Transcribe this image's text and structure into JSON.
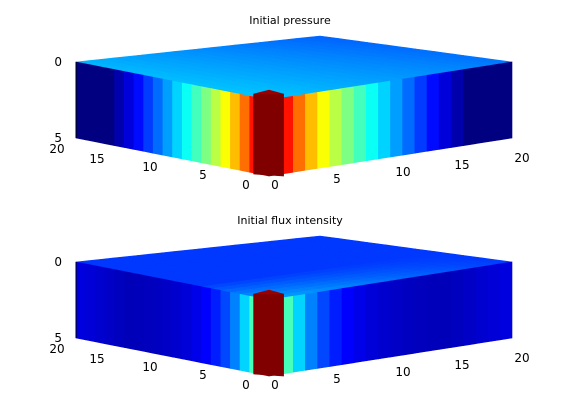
{
  "chart_data": [
    {
      "type": "heatmap",
      "title": "Initial pressure",
      "colormap": "jet",
      "x_ticks": [
        "0",
        "5",
        "10",
        "15",
        "20"
      ],
      "y_ticks": [
        "20",
        "15",
        "10",
        "5",
        "0"
      ],
      "z_ticks": [
        "0",
        "5"
      ],
      "x_range": [
        0,
        20
      ],
      "y_range": [
        0,
        20
      ],
      "z_range": [
        0,
        5
      ],
      "peak_cell": {
        "x": 0,
        "y": 0
      },
      "decay": "radial from corner (0,0), pressure falls off with distance"
    },
    {
      "type": "heatmap",
      "title": "Initial flux intensity",
      "colormap": "jet",
      "x_ticks": [
        "0",
        "5",
        "10",
        "15",
        "20"
      ],
      "y_ticks": [
        "20",
        "15",
        "10",
        "5",
        "0"
      ],
      "z_ticks": [
        "0",
        "5"
      ],
      "x_range": [
        0,
        20
      ],
      "y_range": [
        0,
        20
      ],
      "z_range": [
        0,
        5
      ],
      "peak_cell": {
        "x": 0,
        "y": 0
      },
      "decay": "sharp peak at corner (0,0), low elsewhere, slight rise near far edges"
    }
  ]
}
